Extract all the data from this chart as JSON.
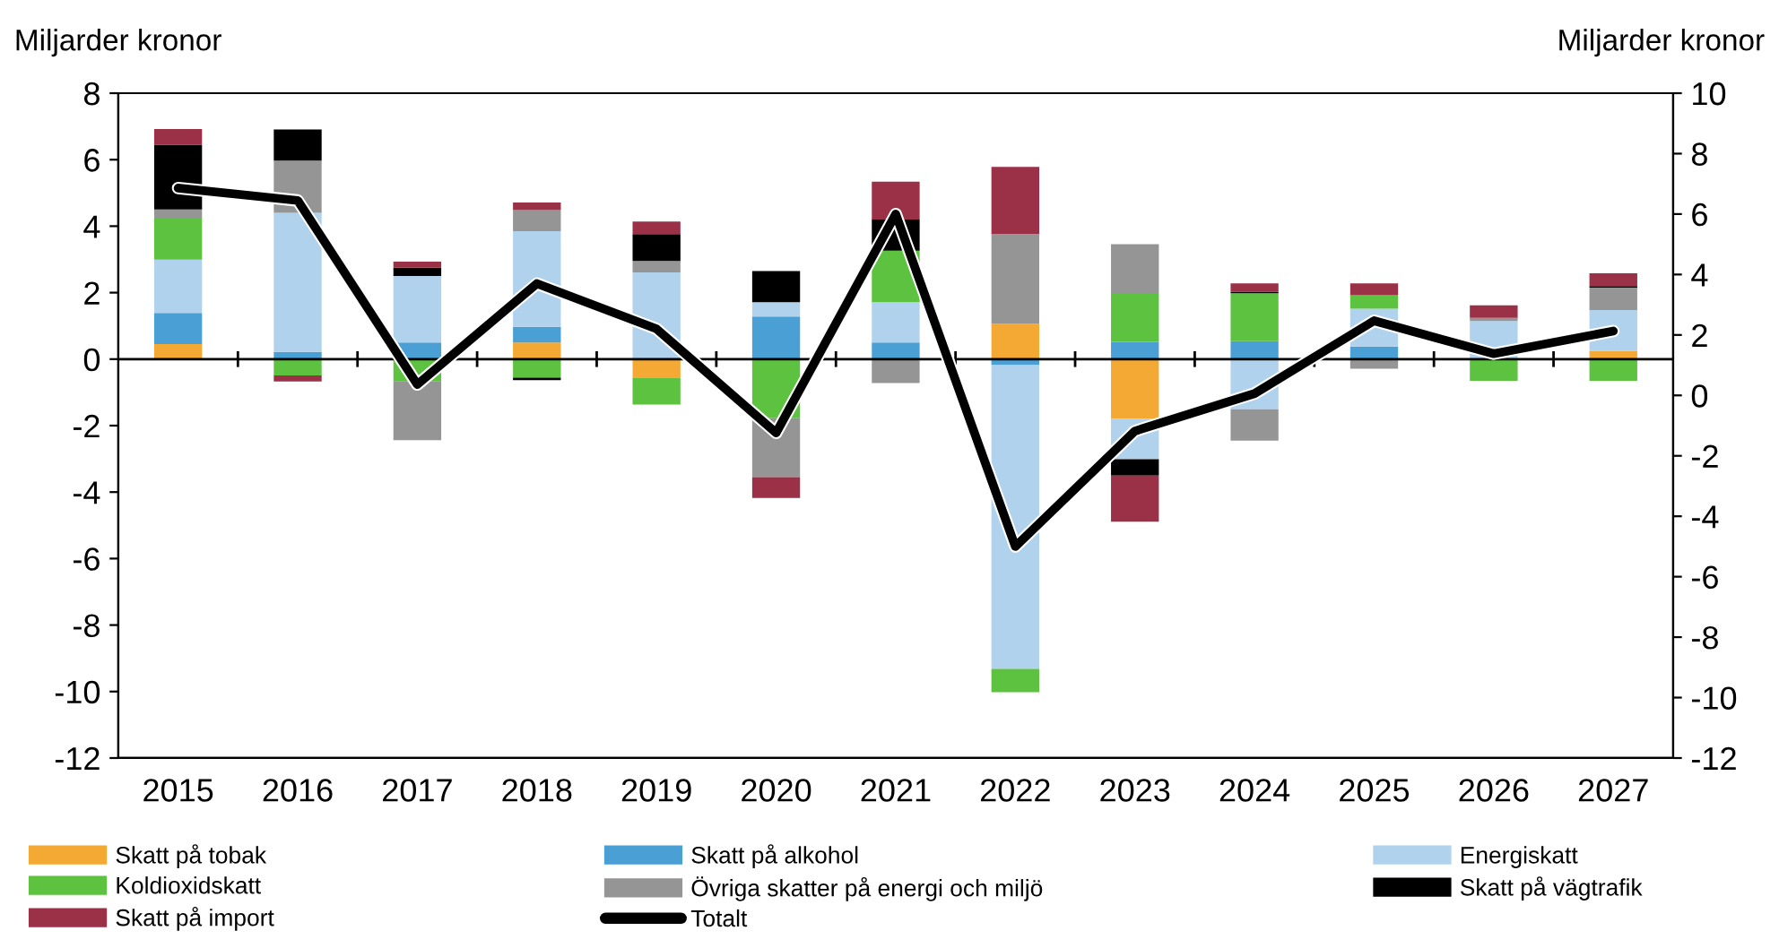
{
  "chart_data": {
    "type": "bar",
    "stacked": true,
    "ylabel": "Miljarder kronor",
    "y2label": "Miljarder kronor",
    "categories": [
      "2015",
      "2016",
      "2017",
      "2018",
      "2019",
      "2020",
      "2021",
      "2022",
      "2023",
      "2024",
      "2025",
      "2026",
      "2027"
    ],
    "series": [
      {
        "name": "Skatt på tobak",
        "color": "#f4a935",
        "values": [
          0.45,
          null,
          0,
          0.5,
          -0.56,
          0,
          0,
          1.06,
          -1.8,
          0,
          0,
          0,
          0.25
        ]
      },
      {
        "name": "Skatt på alkohol",
        "color": "#4a9fd4",
        "values": [
          0.94,
          0.22,
          0.5,
          0.47,
          0,
          1.28,
          0.5,
          -0.18,
          0.52,
          0.54,
          0.38,
          0,
          0
        ]
      },
      {
        "name": "Energiskatt",
        "color": "#b0d2ec",
        "values": [
          1.6,
          4.18,
          2.0,
          2.88,
          2.61,
          0.43,
          1.21,
          -9.14,
          -1.21,
          -1.51,
          1.14,
          1.15,
          1.23
        ]
      },
      {
        "name": "Koldioxidskatt",
        "color": "#5dc240",
        "values": [
          1.26,
          -0.49,
          -0.67,
          -0.56,
          -0.81,
          -1.78,
          1.55,
          -0.7,
          1.44,
          1.44,
          0.4,
          -0.65,
          -0.65
        ]
      },
      {
        "name": "Övriga skatter på energi och miljö",
        "color": "#959595",
        "values": [
          0.25,
          1.57,
          -1.77,
          0.63,
          0.34,
          -1.77,
          -0.72,
          2.7,
          1.5,
          -0.94,
          -0.29,
          0.09,
          0.67
        ]
      },
      {
        "name": "Skatt på vägtrafik",
        "color": "#000000",
        "values": [
          1.95,
          0.94,
          0.25,
          -0.07,
          0.81,
          0.94,
          0.94,
          0,
          -0.49,
          0.05,
          0,
          0,
          0.05
        ]
      },
      {
        "name": "Skatt på import",
        "color": "#9b3147",
        "values": [
          0.47,
          -0.18,
          0.18,
          0.23,
          0.38,
          -0.63,
          1.14,
          2.02,
          -1.39,
          0.25,
          0.36,
          0.38,
          0.38
        ]
      },
      {
        "name": "Totalt",
        "color": "#000000",
        "type": "line",
        "axis": "y2",
        "values": [
          6.86,
          6.45,
          0.36,
          3.7,
          2.2,
          -1.24,
          6.0,
          -5.0,
          -1.18,
          0.06,
          2.47,
          1.38,
          2.13
        ]
      }
    ],
    "ylim": [
      -12,
      8
    ],
    "yticks": [
      -12,
      -10,
      -8,
      -6,
      -4,
      -2,
      0,
      2,
      4,
      6,
      8
    ],
    "y2lim": [
      -12,
      10
    ],
    "y2ticks": [
      -12,
      -10,
      -8,
      -6,
      -4,
      -2,
      0,
      2,
      4,
      6,
      8,
      10
    ],
    "ref_lines": [
      {
        "axis": "y",
        "value": 0,
        "color": "#000000"
      }
    ],
    "legend": "bottom",
    "grid": false,
    "marker": "none",
    "line_style": "solid"
  }
}
